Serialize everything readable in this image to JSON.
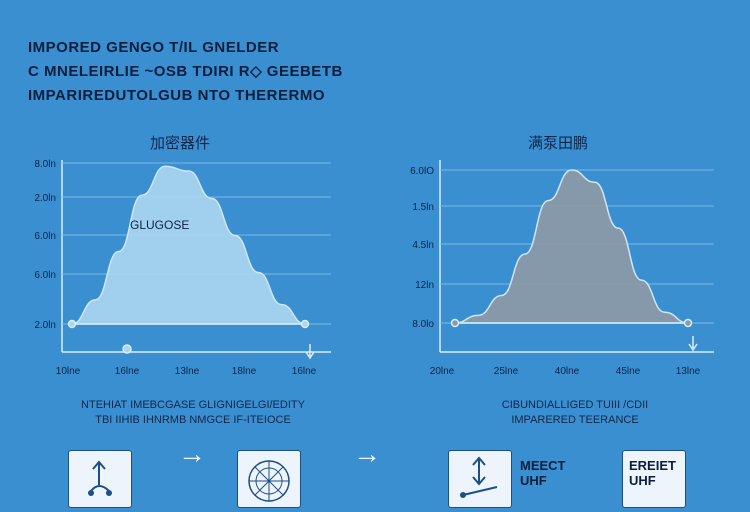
{
  "title_lines": [
    "IMPORED GENGO T/IL GNELDER",
    "C MNELEIRLIE ~OSB TDIRI R◇ GEEBETB",
    "IMPARIREDUTOLGUB NTO THERERMO"
  ],
  "chart_data": [
    {
      "type": "area",
      "title": "加密器件",
      "ytick_labels": [
        "8.0ln",
        "2.0ln",
        "6.0ln",
        "6.0ln",
        "2.0ln"
      ],
      "xtick_labels": [
        "10lne",
        "16lne",
        "13lne",
        "18lne",
        "16lne"
      ],
      "annotation": "GLUGOSE",
      "x": [
        0,
        1,
        2,
        3,
        4,
        5,
        6,
        7,
        8,
        9,
        10
      ],
      "values": [
        0.0,
        0.15,
        0.45,
        0.8,
        0.98,
        0.95,
        0.78,
        0.55,
        0.32,
        0.12,
        0.0
      ],
      "ylim": [
        0,
        1
      ],
      "color": "#a9d6f0",
      "caption": [
        "NTEHIAT IMEBCGASE  GLIGNIGELGI/EDITY",
        "TBI IIHIB IHNRMB NMGCE IF-ITEIOCE"
      ]
    },
    {
      "type": "area",
      "title": "满泵田鹏",
      "ytick_labels": [
        "6.0lO",
        "1.5ln",
        "4.5ln",
        "12ln",
        "8.0lo"
      ],
      "xtick_labels": [
        "20lne",
        "25lne",
        "40lne",
        "45lne",
        "13lne"
      ],
      "x": [
        0,
        1,
        2,
        3,
        4,
        5,
        6,
        7,
        8,
        9,
        10
      ],
      "values": [
        0.0,
        0.05,
        0.18,
        0.45,
        0.8,
        1.0,
        0.92,
        0.62,
        0.28,
        0.07,
        0.0
      ],
      "ylim": [
        0,
        1
      ],
      "color": "#8d9aa6",
      "caption": [
        "CIBUNDIALLIGED TUIII /CDII",
        "IMPARERED TEERANCE"
      ]
    }
  ],
  "bottom": {
    "card3_text": [
      "MEECT",
      "UHF"
    ],
    "card4_text": [
      "EREIET",
      "UHF"
    ],
    "colors": {
      "card_bg": "#eef4fb",
      "card_border": "#1b4f86",
      "arrow": "#eef4fb"
    }
  }
}
